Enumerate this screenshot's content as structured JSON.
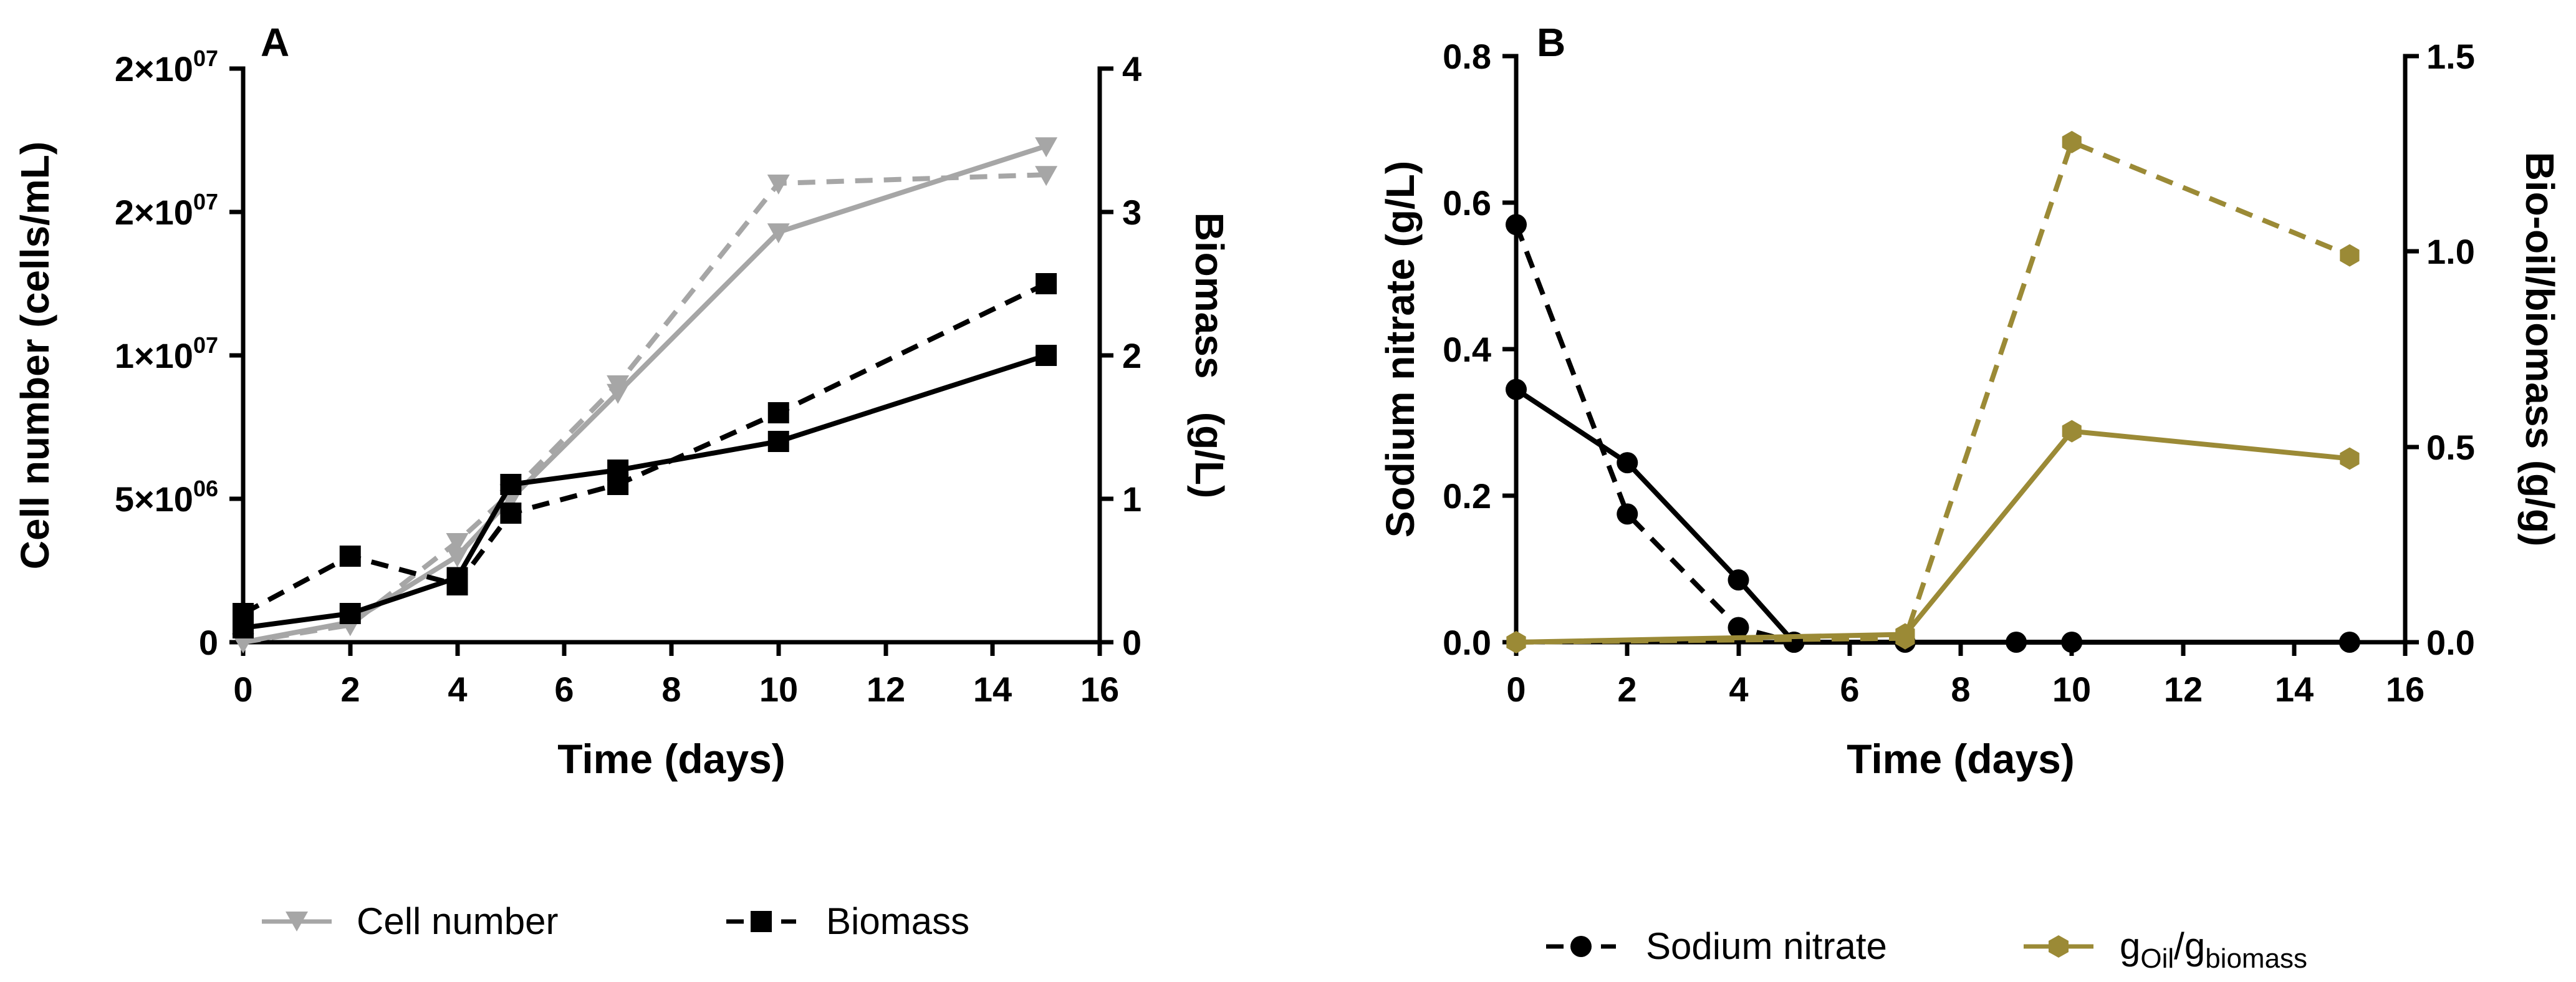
{
  "chart_data": [
    {
      "type": "line",
      "panel_label": "A",
      "xlabel": "Time (days)",
      "ylabel": "Cell number (cells/mL)",
      "y2label": "Biomass   (g/L)",
      "xlim": [
        0,
        16
      ],
      "ylim": [
        0,
        20000000
      ],
      "y2lim": [
        0,
        4
      ],
      "x_ticks": [
        "0",
        "2",
        "4",
        "6",
        "8",
        "10",
        "12",
        "14",
        "16"
      ],
      "y_ticks": [
        {
          "base": "0",
          "exp": ""
        },
        {
          "base": "5×10",
          "exp": "06"
        },
        {
          "base": "1×10",
          "exp": "07"
        },
        {
          "base": "2×10",
          "exp": "07"
        },
        {
          "base": "2×10",
          "exp": "07"
        }
      ],
      "y2_ticks": [
        "0",
        "1",
        "2",
        "3",
        "4"
      ],
      "series": [
        {
          "name": "Cell number (solid)",
          "axis": "left",
          "style": "solid",
          "color": "#a6a6a6",
          "marker": "triangle-down",
          "x": [
            0,
            2,
            4,
            5,
            7,
            10,
            15
          ],
          "y": [
            0,
            700000,
            3000000,
            5000000,
            8700000,
            14300000,
            17300000
          ]
        },
        {
          "name": "Cell number (dashed)",
          "axis": "left",
          "style": "dashed",
          "color": "#a6a6a6",
          "marker": "triangle-down",
          "x": [
            0,
            2,
            4,
            5,
            7,
            10,
            15
          ],
          "y": [
            0,
            600000,
            3500000,
            5200000,
            9000000,
            16000000,
            16300000
          ]
        },
        {
          "name": "Biomass (solid)",
          "axis": "right",
          "style": "solid",
          "color": "#000000",
          "marker": "square",
          "x": [
            0,
            2,
            4,
            5,
            7,
            10,
            15
          ],
          "y": [
            0.1,
            0.2,
            0.45,
            1.1,
            1.2,
            1.4,
            2.0
          ]
        },
        {
          "name": "Biomass (dashed)",
          "axis": "right",
          "style": "dashed",
          "color": "#000000",
          "marker": "square",
          "x": [
            0,
            2,
            4,
            5,
            7,
            10,
            15
          ],
          "y": [
            0.2,
            0.6,
            0.4,
            0.9,
            1.1,
            1.6,
            2.5
          ]
        }
      ],
      "legend": [
        {
          "label": "Cell number",
          "color": "#a6a6a6",
          "style": "solid",
          "marker": "triangle-down"
        },
        {
          "label": "Biomass",
          "color": "#000000",
          "style": "dashed",
          "marker": "square"
        }
      ]
    },
    {
      "type": "line",
      "panel_label": "B",
      "xlabel": "Time (days)",
      "ylabel": "Sodium nitrate (g/L)",
      "y2label": "Bio-oil/biomass (g/g)",
      "xlim": [
        0,
        16
      ],
      "ylim": [
        0,
        0.8
      ],
      "y2lim": [
        0,
        1.5
      ],
      "x_ticks": [
        "0",
        "2",
        "4",
        "6",
        "8",
        "10",
        "12",
        "14",
        "16"
      ],
      "y_ticks": [
        "0.0",
        "0.2",
        "0.4",
        "0.6",
        "0.8"
      ],
      "y2_ticks": [
        "0.0",
        "0.5",
        "1.0",
        "1.5"
      ],
      "series": [
        {
          "name": "Sodium nitrate (solid)",
          "axis": "left",
          "style": "solid",
          "color": "#000000",
          "marker": "circle",
          "x": [
            0,
            2,
            4,
            5,
            7,
            9,
            10,
            15
          ],
          "y": [
            0.345,
            0.245,
            0.085,
            0.0,
            0.0,
            0.0,
            0.0,
            0.0
          ]
        },
        {
          "name": "Sodium nitrate (dashed)",
          "axis": "left",
          "style": "dashed",
          "color": "#000000",
          "marker": "circle",
          "x": [
            0,
            2,
            4,
            5
          ],
          "y": [
            0.57,
            0.175,
            0.02,
            0.0
          ]
        },
        {
          "name": "Bio-oil/biomass (solid)",
          "axis": "right",
          "style": "solid",
          "color": "#9b8a36",
          "marker": "hexagon",
          "x": [
            0,
            7,
            10,
            15
          ],
          "y": [
            0.0,
            0.02,
            0.54,
            0.47
          ]
        },
        {
          "name": "Bio-oil/biomass (dashed)",
          "axis": "right",
          "style": "dashed",
          "color": "#9b8a36",
          "marker": "hexagon",
          "x": [
            0,
            7,
            10,
            15
          ],
          "y": [
            0.0,
            0.01,
            1.28,
            0.99
          ]
        }
      ],
      "legend": [
        {
          "label": "Sodium nitrate",
          "color": "#000000",
          "style": "dashed",
          "marker": "circle"
        },
        {
          "label_parts": [
            "g",
            "Oil",
            "/g",
            "biomass"
          ],
          "color": "#9b8a36",
          "style": "solid",
          "marker": "hexagon"
        }
      ]
    }
  ]
}
